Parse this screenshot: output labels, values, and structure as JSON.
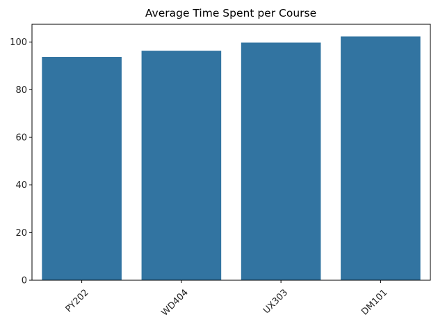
{
  "chart_data": {
    "type": "bar",
    "title": "Average Time Spent per Course",
    "xlabel": "",
    "ylabel": "",
    "categories": [
      "PY202",
      "WD404",
      "UX303",
      "DM101"
    ],
    "values": [
      93.8,
      96.4,
      99.8,
      102.4
    ],
    "ylim": [
      0,
      107.5
    ],
    "yticks": [
      0,
      20,
      40,
      60,
      80,
      100
    ],
    "x_tick_rotation_deg": 45,
    "grid": false,
    "legend": "none",
    "colors": {
      "bar": "#3274a1",
      "axis": "#000000",
      "text": "#262626"
    }
  }
}
